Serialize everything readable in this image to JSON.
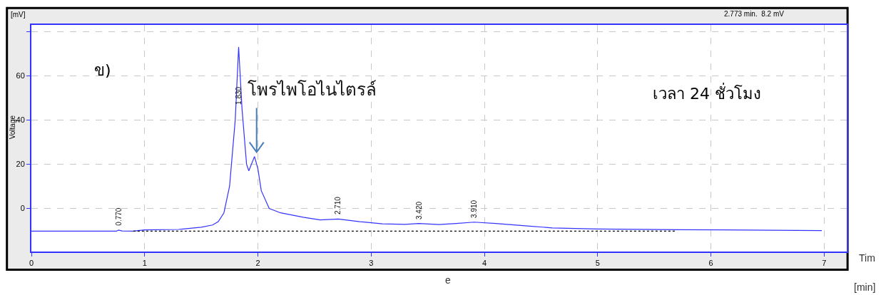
{
  "chart_data": {
    "type": "line",
    "xlabel": "Tim e",
    "ylabel": "Voltage",
    "x": [
      0,
      0.6,
      0.75,
      0.77,
      0.8,
      0.9,
      1.0,
      1.3,
      1.5,
      1.6,
      1.65,
      1.7,
      1.75,
      1.8,
      1.83,
      1.86,
      1.9,
      1.92,
      1.97,
      2.0,
      2.03,
      2.1,
      2.2,
      2.4,
      2.55,
      2.71,
      2.9,
      3.1,
      3.3,
      3.42,
      3.6,
      3.75,
      3.91,
      4.1,
      4.4,
      4.6,
      5.0,
      5.7,
      6.98
    ],
    "series": [
      {
        "color": "#3333ff",
        "values": [
          -10.3,
          -10.3,
          -10.3,
          -9.8,
          -10.2,
          -10.3,
          -9.7,
          -9.5,
          -8.5,
          -7.5,
          -6,
          -2,
          10,
          40,
          73,
          45,
          20,
          17,
          23.5,
          18,
          8,
          0,
          -2,
          -4,
          -5.2,
          -4.8,
          -6,
          -7,
          -7.2,
          -6.8,
          -7.3,
          -6.8,
          -6.2,
          -6.8,
          -8,
          -8.8,
          -9.3,
          -9.6,
          -10
        ]
      },
      {
        "color": "#000000",
        "line_style": "dotted",
        "x": [
          0.9,
          5.7
        ],
        "values": [
          -10.3,
          -10.3
        ]
      }
    ],
    "xlim": [
      0,
      7.2
    ],
    "xticks": [
      0,
      1,
      2,
      3,
      4,
      5,
      6,
      7
    ],
    "ylim": [
      -19.5,
      83
    ],
    "yticks": [
      0,
      20,
      40,
      60,
      {
        "value": 80,
        "label": null
      }
    ],
    "grid": true,
    "marker": "none",
    "line_style": "solid",
    "annotations": [
      "ข)",
      "เวลา 24 ชั่วโมง",
      "2.773 min.  8.2 mV",
      "[mV]",
      "[min]",
      {
        "text": "0.770",
        "x": 0.77,
        "y": -9.8
      },
      {
        "text": "1.830",
        "x": 1.83,
        "y": 45
      },
      {
        "text": "2.710",
        "x": 2.71,
        "y": -4.8
      },
      {
        "text": "3.420",
        "x": 3.42,
        "y": -6.8
      },
      {
        "text": "3.910",
        "x": 3.91,
        "y": -6.2
      },
      {
        "text": "โพรไพโอไนไตรล์",
        "x": 1.97,
        "y": 23.5
      }
    ]
  }
}
